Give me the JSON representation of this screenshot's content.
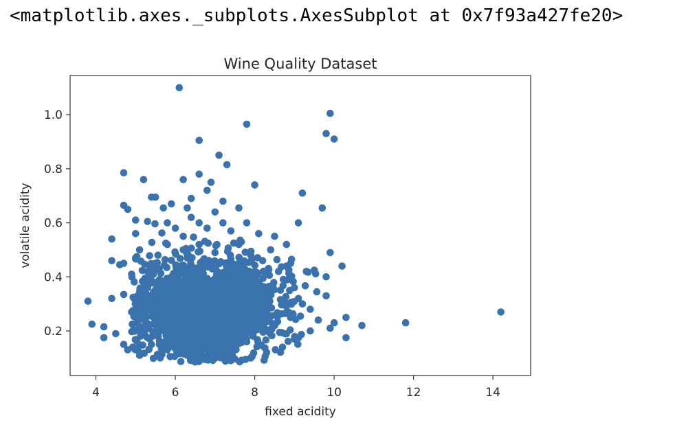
{
  "repr_text": "<matplotlib.axes._subplots.AxesSubplot at 0x7f93a427fe20>",
  "colors": {
    "marker": "#3a72ae",
    "axes_edge": "#333333",
    "text": "#262626",
    "background": "#ffffff"
  },
  "chart_data": {
    "type": "scatter",
    "title": "Wine Quality Dataset",
    "xlabel": "fixed acidity",
    "ylabel": "volatile acidity",
    "xlim": [
      3.35,
      14.95
    ],
    "ylim": [
      0.035,
      1.145
    ],
    "xticks": [
      4,
      6,
      8,
      10,
      12,
      14
    ],
    "xtick_labels": [
      "4",
      "6",
      "8",
      "10",
      "12",
      "14"
    ],
    "yticks": [
      0.2,
      0.4,
      0.6,
      0.8,
      1.0
    ],
    "ytick_labels": [
      "0.2",
      "0.4",
      "0.6",
      "0.8",
      "1.0"
    ],
    "grid": false,
    "legend": false,
    "points": [
      [
        3.8,
        0.31
      ],
      [
        3.9,
        0.225
      ],
      [
        4.2,
        0.215
      ],
      [
        4.2,
        0.175
      ],
      [
        4.4,
        0.32
      ],
      [
        4.4,
        0.46
      ],
      [
        4.4,
        0.54
      ],
      [
        4.5,
        0.19
      ],
      [
        4.6,
        0.445
      ],
      [
        4.7,
        0.785
      ],
      [
        4.7,
        0.665
      ],
      [
        4.7,
        0.45
      ],
      [
        4.7,
        0.335
      ],
      [
        4.7,
        0.15
      ],
      [
        4.8,
        0.65
      ],
      [
        4.8,
        0.13
      ],
      [
        4.9,
        0.41
      ],
      [
        4.9,
        0.27
      ],
      [
        5.0,
        0.61
      ],
      [
        5.0,
        0.56
      ],
      [
        5.0,
        0.47
      ],
      [
        5.1,
        0.5
      ],
      [
        5.1,
        0.29
      ],
      [
        5.1,
        0.11
      ],
      [
        5.2,
        0.76
      ],
      [
        5.3,
        0.605
      ],
      [
        5.4,
        0.695
      ],
      [
        5.5,
        0.695
      ],
      [
        5.6,
        0.15
      ],
      [
        5.7,
        0.655
      ],
      [
        5.8,
        0.6
      ],
      [
        5.9,
        0.67
      ],
      [
        6.1,
        1.1
      ],
      [
        6.2,
        0.76
      ],
      [
        6.3,
        0.655
      ],
      [
        6.4,
        0.69
      ],
      [
        6.5,
        0.085
      ],
      [
        6.6,
        0.905
      ],
      [
        6.6,
        0.78
      ],
      [
        6.8,
        0.72
      ],
      [
        6.9,
        0.75
      ],
      [
        7.1,
        0.85
      ],
      [
        7.2,
        0.68
      ],
      [
        7.3,
        0.815
      ],
      [
        7.6,
        0.655
      ],
      [
        7.8,
        0.965
      ],
      [
        8.0,
        0.74
      ],
      [
        8.1,
        0.56
      ],
      [
        8.5,
        0.55
      ],
      [
        8.8,
        0.52
      ],
      [
        9.1,
        0.6
      ],
      [
        9.2,
        0.71
      ],
      [
        9.3,
        0.42
      ],
      [
        9.5,
        0.425
      ],
      [
        9.7,
        0.655
      ],
      [
        9.8,
        0.93
      ],
      [
        9.8,
        0.4
      ],
      [
        9.8,
        0.33
      ],
      [
        9.9,
        1.005
      ],
      [
        9.9,
        0.49
      ],
      [
        9.9,
        0.21
      ],
      [
        10.0,
        0.91
      ],
      [
        10.0,
        0.23
      ],
      [
        10.2,
        0.44
      ],
      [
        10.3,
        0.25
      ],
      [
        10.3,
        0.175
      ],
      [
        10.7,
        0.22
      ],
      [
        11.8,
        0.23
      ],
      [
        14.2,
        0.27
      ],
      [
        5.5,
        0.45
      ],
      [
        5.8,
        0.52
      ],
      [
        6.0,
        0.58
      ],
      [
        6.2,
        0.55
      ],
      [
        6.4,
        0.62
      ],
      [
        6.6,
        0.6
      ],
      [
        6.8,
        0.58
      ],
      [
        7.0,
        0.64
      ],
      [
        7.2,
        0.6
      ],
      [
        7.4,
        0.57
      ],
      [
        7.6,
        0.52
      ],
      [
        7.8,
        0.6
      ],
      [
        7.9,
        0.48
      ],
      [
        8.2,
        0.46
      ],
      [
        8.4,
        0.5
      ],
      [
        8.6,
        0.42
      ],
      [
        8.8,
        0.44
      ],
      [
        9.0,
        0.36
      ],
      [
        9.2,
        0.3
      ],
      [
        9.4,
        0.28
      ],
      [
        9.6,
        0.24
      ],
      [
        9.4,
        0.2
      ],
      [
        9.0,
        0.17
      ],
      [
        8.7,
        0.14
      ],
      [
        8.3,
        0.12
      ],
      [
        7.9,
        0.1
      ],
      [
        7.4,
        0.09
      ],
      [
        7.0,
        0.1
      ],
      [
        6.6,
        0.1
      ],
      [
        6.2,
        0.12
      ],
      [
        5.8,
        0.13
      ],
      [
        5.4,
        0.15
      ],
      [
        5.1,
        0.2
      ],
      [
        5.0,
        0.25
      ],
      [
        5.2,
        0.35
      ],
      [
        5.3,
        0.42
      ],
      [
        5.6,
        0.38
      ],
      [
        5.7,
        0.3
      ],
      [
        5.9,
        0.22
      ],
      [
        6.0,
        0.32
      ],
      [
        6.1,
        0.41
      ],
      [
        6.3,
        0.47
      ],
      [
        6.3,
        0.26
      ],
      [
        6.5,
        0.36
      ],
      [
        6.5,
        0.18
      ],
      [
        6.7,
        0.43
      ],
      [
        6.7,
        0.27
      ],
      [
        6.9,
        0.33
      ],
      [
        6.9,
        0.21
      ],
      [
        7.1,
        0.4
      ],
      [
        7.1,
        0.16
      ],
      [
        7.3,
        0.3
      ],
      [
        7.3,
        0.45
      ],
      [
        7.5,
        0.22
      ],
      [
        7.5,
        0.37
      ],
      [
        7.7,
        0.28
      ],
      [
        7.7,
        0.42
      ],
      [
        8.0,
        0.32
      ],
      [
        8.0,
        0.2
      ],
      [
        8.2,
        0.26
      ],
      [
        8.4,
        0.35
      ],
      [
        8.5,
        0.22
      ],
      [
        8.7,
        0.3
      ],
      [
        8.9,
        0.25
      ],
      [
        9.1,
        0.32
      ],
      [
        5.6,
        0.24
      ],
      [
        6.0,
        0.19
      ],
      [
        6.4,
        0.29
      ],
      [
        6.8,
        0.24
      ],
      [
        7.2,
        0.25
      ],
      [
        7.6,
        0.31
      ],
      [
        8.1,
        0.38
      ],
      [
        6.2,
        0.5
      ],
      [
        6.6,
        0.52
      ],
      [
        7.0,
        0.49
      ],
      [
        5.4,
        0.28
      ],
      [
        5.9,
        0.4
      ],
      [
        6.4,
        0.44
      ],
      [
        7.8,
        0.16
      ],
      [
        8.8,
        0.19
      ]
    ]
  }
}
